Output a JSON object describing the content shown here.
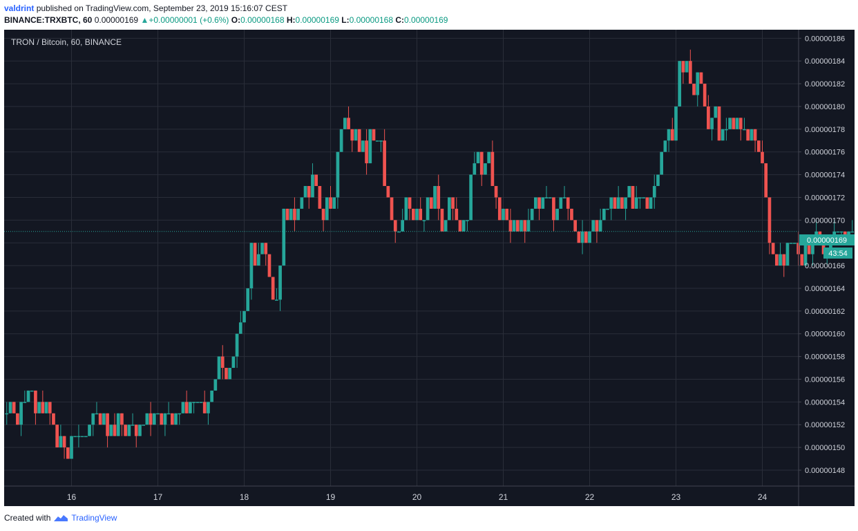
{
  "header": {
    "author": "valdrint",
    "published_text": "published on TradingView.com, September 23, 2019 15:16:07 CEST",
    "symbol": "BINANCE:TRXBTC, 60",
    "last": "0.00000169",
    "change": "+0.00000001 (+0.6%)",
    "o_label": "O:",
    "o": "0.00000168",
    "h_label": "H:",
    "h": "0.00000169",
    "l_label": "L:",
    "l": "0.00000168",
    "c_label": "C:",
    "c": "0.00000169"
  },
  "chart_title": "TRON / Bitcoin, 60, BINANCE",
  "footer": {
    "created_with": "Created with",
    "brand": "TradingView"
  },
  "price_badge": "0.00000169",
  "countdown_badge": "43:54",
  "colors": {
    "background": "#131722",
    "grid": "#2a2e39",
    "up": "#26a69a",
    "down": "#ef5350",
    "axis_text": "#d1d4dc",
    "price_line": "#26a69a"
  },
  "chart_data": {
    "type": "candlestick",
    "title": "TRON / Bitcoin, 60, BINANCE",
    "x_ticks": [
      "16",
      "17",
      "18",
      "19",
      "20",
      "21",
      "22",
      "23",
      "24"
    ],
    "x_range": [
      15.22,
      24.42
    ],
    "y_ticks": [
      "0.00000148",
      "0.00000150",
      "0.00000152",
      "0.00000154",
      "0.00000156",
      "0.00000158",
      "0.00000160",
      "0.00000162",
      "0.00000164",
      "0.00000166",
      "0.00000168",
      "0.00000170",
      "0.00000172",
      "0.00000174",
      "0.00000176",
      "0.00000178",
      "0.00000180",
      "0.00000182",
      "0.00000184",
      "0.00000186"
    ],
    "ylim": [
      1.466,
      1.8675
    ],
    "y_scale_note": "values in units of 1e-6 BTC",
    "last_price": 1.69,
    "grid": true,
    "candle_interval_hours": 1,
    "start_day": 15.25,
    "closes": [
      1.53,
      1.54,
      1.53,
      1.52,
      1.54,
      1.54,
      1.55,
      1.55,
      1.53,
      1.54,
      1.53,
      1.54,
      1.53,
      1.52,
      1.5,
      1.51,
      1.5,
      1.49,
      1.51,
      1.51,
      1.51,
      1.51,
      1.51,
      1.52,
      1.53,
      1.53,
      1.52,
      1.53,
      1.51,
      1.52,
      1.51,
      1.53,
      1.52,
      1.51,
      1.52,
      1.52,
      1.51,
      1.52,
      1.52,
      1.53,
      1.52,
      1.53,
      1.53,
      1.52,
      1.53,
      1.53,
      1.52,
      1.53,
      1.53,
      1.54,
      1.53,
      1.54,
      1.54,
      1.54,
      1.54,
      1.53,
      1.54,
      1.55,
      1.56,
      1.58,
      1.57,
      1.56,
      1.57,
      1.58,
      1.6,
      1.61,
      1.62,
      1.64,
      1.68,
      1.66,
      1.67,
      1.68,
      1.67,
      1.65,
      1.63,
      1.63,
      1.66,
      1.71,
      1.7,
      1.71,
      1.7,
      1.71,
      1.72,
      1.73,
      1.72,
      1.74,
      1.73,
      1.71,
      1.7,
      1.72,
      1.71,
      1.72,
      1.76,
      1.78,
      1.79,
      1.78,
      1.77,
      1.78,
      1.76,
      1.77,
      1.75,
      1.78,
      1.77,
      1.77,
      1.77,
      1.73,
      1.72,
      1.7,
      1.69,
      1.69,
      1.7,
      1.72,
      1.71,
      1.7,
      1.71,
      1.7,
      1.7,
      1.72,
      1.71,
      1.73,
      1.71,
      1.69,
      1.7,
      1.72,
      1.71,
      1.7,
      1.69,
      1.7,
      1.7,
      1.74,
      1.75,
      1.76,
      1.74,
      1.75,
      1.76,
      1.73,
      1.72,
      1.7,
      1.71,
      1.7,
      1.69,
      1.7,
      1.69,
      1.7,
      1.69,
      1.7,
      1.71,
      1.72,
      1.71,
      1.72,
      1.72,
      1.72,
      1.7,
      1.71,
      1.72,
      1.72,
      1.71,
      1.7,
      1.69,
      1.68,
      1.69,
      1.68,
      1.69,
      1.7,
      1.69,
      1.7,
      1.71,
      1.71,
      1.72,
      1.71,
      1.72,
      1.71,
      1.72,
      1.73,
      1.71,
      1.72,
      1.72,
      1.72,
      1.71,
      1.72,
      1.73,
      1.74,
      1.76,
      1.77,
      1.78,
      1.77,
      1.8,
      1.84,
      1.83,
      1.84,
      1.82,
      1.81,
      1.83,
      1.82,
      1.8,
      1.78,
      1.79,
      1.8,
      1.77,
      1.78,
      1.78,
      1.79,
      1.78,
      1.79,
      1.78,
      1.78,
      1.77,
      1.78,
      1.77,
      1.76,
      1.75,
      1.72,
      1.68,
      1.67,
      1.66,
      1.67,
      1.66,
      1.68,
      1.68,
      1.68,
      1.67,
      1.66,
      1.68,
      1.67,
      1.68,
      1.69,
      1.68,
      1.67,
      1.67,
      1.68,
      1.69,
      1.69,
      1.69,
      1.68,
      1.69,
      1.69
    ]
  }
}
